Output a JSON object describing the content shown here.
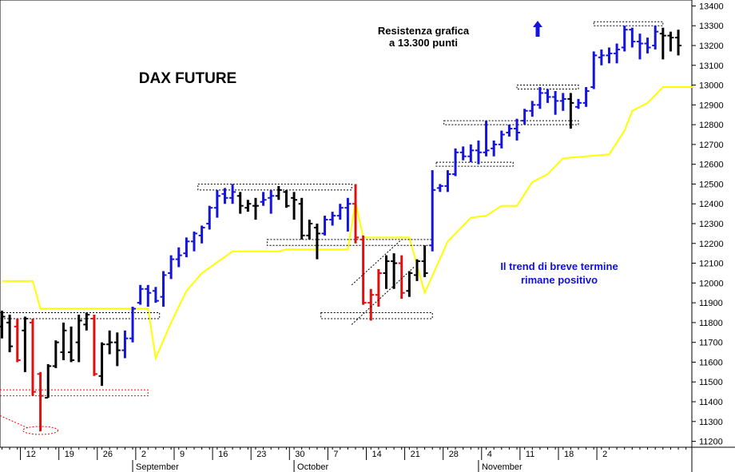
{
  "chart_data": {
    "type": "ohlc",
    "title": "DAX FUTURE",
    "ylim": [
      11170,
      13430
    ],
    "y_ticks": [
      11200,
      11300,
      11400,
      11500,
      11600,
      11700,
      11800,
      11900,
      12000,
      12100,
      12200,
      12300,
      12400,
      12500,
      12600,
      12700,
      12800,
      12900,
      13000,
      13100,
      13200,
      13300,
      13400
    ],
    "x_ticks": [
      {
        "label": "12",
        "index": 3
      },
      {
        "label": "19",
        "index": 8
      },
      {
        "label": "26",
        "index": 13
      },
      {
        "label": "2",
        "index": 18
      },
      {
        "label": "9",
        "index": 23
      },
      {
        "label": "16",
        "index": 28
      },
      {
        "label": "23",
        "index": 33
      },
      {
        "label": "30",
        "index": 38
      },
      {
        "label": "7",
        "index": 43
      },
      {
        "label": "14",
        "index": 48
      },
      {
        "label": "21",
        "index": 53
      },
      {
        "label": "28",
        "index": 58
      },
      {
        "label": "4",
        "index": 63
      },
      {
        "label": "11",
        "index": 68
      },
      {
        "label": "18",
        "index": 73
      },
      {
        "label": "2",
        "index": 78
      }
    ],
    "month_labels": [
      {
        "label": "September",
        "index": 17
      },
      {
        "label": "October",
        "index": 38
      },
      {
        "label": "November",
        "index": 62
      }
    ],
    "colors": {
      "up": "#1414dc",
      "down": "#e01010",
      "neutral": "#000000",
      "support_line": "#ffff00",
      "box_dark": "#000000",
      "box_red": "#e01010",
      "trend_text": "#1010e0"
    },
    "bars": [
      {
        "o": 11780,
        "h": 11860,
        "l": 11720,
        "c": 11830,
        "col": "neutral"
      },
      {
        "o": 11800,
        "h": 11840,
        "l": 11650,
        "c": 11680,
        "col": "neutral"
      },
      {
        "o": 11780,
        "h": 11820,
        "l": 11600,
        "c": 11610,
        "col": "down"
      },
      {
        "o": 11760,
        "h": 11830,
        "l": 11550,
        "c": 11820,
        "col": "neutral"
      },
      {
        "o": 11800,
        "h": 11820,
        "l": 11430,
        "c": 11450,
        "col": "down"
      },
      {
        "o": 11540,
        "h": 11550,
        "l": 11250,
        "c": 11430,
        "col": "down"
      },
      {
        "o": 11420,
        "h": 11590,
        "l": 11420,
        "c": 11580,
        "col": "neutral"
      },
      {
        "o": 11580,
        "h": 11710,
        "l": 11570,
        "c": 11700,
        "col": "neutral"
      },
      {
        "o": 11650,
        "h": 11800,
        "l": 11610,
        "c": 11760,
        "col": "neutral"
      },
      {
        "o": 11650,
        "h": 11780,
        "l": 11600,
        "c": 11610,
        "col": "neutral"
      },
      {
        "o": 11700,
        "h": 11840,
        "l": 11600,
        "c": 11810,
        "col": "neutral"
      },
      {
        "o": 11790,
        "h": 11850,
        "l": 11760,
        "c": 11840,
        "col": "neutral"
      },
      {
        "o": 11820,
        "h": 11840,
        "l": 11530,
        "c": 11540,
        "col": "down"
      },
      {
        "o": 11530,
        "h": 11700,
        "l": 11480,
        "c": 11690,
        "col": "neutral"
      },
      {
        "o": 11690,
        "h": 11760,
        "l": 11640,
        "c": 11700,
        "col": "neutral"
      },
      {
        "o": 11700,
        "h": 11750,
        "l": 11580,
        "c": 11660,
        "col": "neutral"
      },
      {
        "o": 11660,
        "h": 11760,
        "l": 11620,
        "c": 11720,
        "col": "up"
      },
      {
        "o": 11720,
        "h": 11880,
        "l": 11700,
        "c": 11870,
        "col": "up"
      },
      {
        "o": 11900,
        "h": 11990,
        "l": 11890,
        "c": 11970,
        "col": "up"
      },
      {
        "o": 11970,
        "h": 11990,
        "l": 11880,
        "c": 11950,
        "col": "up"
      },
      {
        "o": 11960,
        "h": 11980,
        "l": 11900,
        "c": 11910,
        "col": "up"
      },
      {
        "o": 11930,
        "h": 12060,
        "l": 11880,
        "c": 12040,
        "col": "up"
      },
      {
        "o": 12050,
        "h": 12140,
        "l": 12020,
        "c": 12120,
        "col": "up"
      },
      {
        "o": 12120,
        "h": 12180,
        "l": 12080,
        "c": 12140,
        "col": "up"
      },
      {
        "o": 12150,
        "h": 12230,
        "l": 12130,
        "c": 12210,
        "col": "up"
      },
      {
        "o": 12210,
        "h": 12260,
        "l": 12160,
        "c": 12250,
        "col": "up"
      },
      {
        "o": 12240,
        "h": 12290,
        "l": 12200,
        "c": 12280,
        "col": "up"
      },
      {
        "o": 12300,
        "h": 12390,
        "l": 12270,
        "c": 12380,
        "col": "up"
      },
      {
        "o": 12380,
        "h": 12470,
        "l": 12330,
        "c": 12440,
        "col": "up"
      },
      {
        "o": 12450,
        "h": 12480,
        "l": 12400,
        "c": 12430,
        "col": "up"
      },
      {
        "o": 12430,
        "h": 12500,
        "l": 12400,
        "c": 12460,
        "col": "up"
      },
      {
        "o": 12440,
        "h": 12460,
        "l": 12350,
        "c": 12390,
        "col": "neutral"
      },
      {
        "o": 12380,
        "h": 12420,
        "l": 12360,
        "c": 12400,
        "col": "neutral"
      },
      {
        "o": 12390,
        "h": 12430,
        "l": 12320,
        "c": 12390,
        "col": "neutral"
      },
      {
        "o": 12410,
        "h": 12460,
        "l": 12390,
        "c": 12420,
        "col": "up"
      },
      {
        "o": 12430,
        "h": 12470,
        "l": 12350,
        "c": 12440,
        "col": "up"
      },
      {
        "o": 12440,
        "h": 12490,
        "l": 12420,
        "c": 12470,
        "col": "neutral"
      },
      {
        "o": 12460,
        "h": 12470,
        "l": 12380,
        "c": 12390,
        "col": "neutral"
      },
      {
        "o": 12430,
        "h": 12460,
        "l": 12320,
        "c": 12420,
        "col": "neutral"
      },
      {
        "o": 12400,
        "h": 12430,
        "l": 12220,
        "c": 12240,
        "col": "neutral"
      },
      {
        "o": 12240,
        "h": 12320,
        "l": 12220,
        "c": 12300,
        "col": "neutral"
      },
      {
        "o": 12280,
        "h": 12300,
        "l": 12120,
        "c": 12250,
        "col": "neutral"
      },
      {
        "o": 12250,
        "h": 12340,
        "l": 12240,
        "c": 12320,
        "col": "up"
      },
      {
        "o": 12320,
        "h": 12360,
        "l": 12290,
        "c": 12340,
        "col": "up"
      },
      {
        "o": 12340,
        "h": 12400,
        "l": 12320,
        "c": 12380,
        "col": "up"
      },
      {
        "o": 12380,
        "h": 12430,
        "l": 12260,
        "c": 12400,
        "col": "up"
      },
      {
        "o": 12400,
        "h": 12500,
        "l": 12200,
        "c": 12230,
        "col": "down"
      },
      {
        "o": 12220,
        "h": 12240,
        "l": 11890,
        "c": 11900,
        "col": "down"
      },
      {
        "o": 11900,
        "h": 11970,
        "l": 11810,
        "c": 11940,
        "col": "down"
      },
      {
        "o": 11940,
        "h": 12070,
        "l": 11880,
        "c": 12050,
        "col": "down"
      },
      {
        "o": 12050,
        "h": 12140,
        "l": 11970,
        "c": 12110,
        "col": "neutral"
      },
      {
        "o": 12110,
        "h": 12150,
        "l": 11970,
        "c": 12100,
        "col": "neutral"
      },
      {
        "o": 12100,
        "h": 12140,
        "l": 11920,
        "c": 11950,
        "col": "down"
      },
      {
        "o": 11960,
        "h": 12060,
        "l": 11930,
        "c": 12050,
        "col": "neutral"
      },
      {
        "o": 12040,
        "h": 12120,
        "l": 12010,
        "c": 12110,
        "col": "neutral"
      },
      {
        "o": 12110,
        "h": 12190,
        "l": 12030,
        "c": 12050,
        "col": "neutral"
      },
      {
        "o": 12190,
        "h": 12570,
        "l": 12160,
        "c": 12470,
        "col": "up"
      },
      {
        "o": 12480,
        "h": 12500,
        "l": 12460,
        "c": 12490,
        "col": "up"
      },
      {
        "o": 12490,
        "h": 12570,
        "l": 12460,
        "c": 12550,
        "col": "up"
      },
      {
        "o": 12550,
        "h": 12680,
        "l": 12540,
        "c": 12660,
        "col": "up"
      },
      {
        "o": 12660,
        "h": 12690,
        "l": 12620,
        "c": 12640,
        "col": "up"
      },
      {
        "o": 12640,
        "h": 12700,
        "l": 12610,
        "c": 12670,
        "col": "up"
      },
      {
        "o": 12670,
        "h": 12720,
        "l": 12600,
        "c": 12660,
        "col": "up"
      },
      {
        "o": 12660,
        "h": 12820,
        "l": 12640,
        "c": 12670,
        "col": "up"
      },
      {
        "o": 12680,
        "h": 12720,
        "l": 12640,
        "c": 12700,
        "col": "up"
      },
      {
        "o": 12700,
        "h": 12770,
        "l": 12680,
        "c": 12750,
        "col": "up"
      },
      {
        "o": 12760,
        "h": 12800,
        "l": 12740,
        "c": 12780,
        "col": "up"
      },
      {
        "o": 12780,
        "h": 12830,
        "l": 12720,
        "c": 12760,
        "col": "up"
      }
    ],
    "bars2": [
      {
        "o": 12820,
        "h": 12880,
        "l": 12800,
        "c": 12870,
        "col": "up"
      },
      {
        "o": 12870,
        "h": 12920,
        "l": 12840,
        "c": 12900,
        "col": "up"
      },
      {
        "o": 12900,
        "h": 12990,
        "l": 12880,
        "c": 12960,
        "col": "up"
      },
      {
        "o": 12960,
        "h": 12980,
        "l": 12910,
        "c": 12940,
        "col": "up"
      },
      {
        "o": 12940,
        "h": 12970,
        "l": 12850,
        "c": 12920,
        "col": "up"
      },
      {
        "o": 12920,
        "h": 12960,
        "l": 12870,
        "c": 12930,
        "col": "up"
      },
      {
        "o": 12930,
        "h": 12960,
        "l": 12780,
        "c": 12910,
        "col": "neutral"
      },
      {
        "o": 12890,
        "h": 12930,
        "l": 12880,
        "c": 12910,
        "col": "up"
      },
      {
        "o": 12910,
        "h": 12990,
        "l": 12890,
        "c": 12970,
        "col": "up"
      },
      {
        "o": 12990,
        "h": 13170,
        "l": 12980,
        "c": 13150,
        "col": "up"
      },
      {
        "o": 13140,
        "h": 13180,
        "l": 13100,
        "c": 13150,
        "col": "up"
      },
      {
        "o": 13150,
        "h": 13190,
        "l": 13110,
        "c": 13160,
        "col": "up"
      },
      {
        "o": 13160,
        "h": 13210,
        "l": 13110,
        "c": 13180,
        "col": "up"
      },
      {
        "o": 13190,
        "h": 13300,
        "l": 13170,
        "c": 13280,
        "col": "up"
      },
      {
        "o": 13280,
        "h": 13290,
        "l": 13190,
        "c": 13220,
        "col": "up"
      },
      {
        "o": 13220,
        "h": 13260,
        "l": 13130,
        "c": 13210,
        "col": "up"
      },
      {
        "o": 13210,
        "h": 13240,
        "l": 13160,
        "c": 13190,
        "col": "up"
      },
      {
        "o": 13200,
        "h": 13300,
        "l": 13180,
        "c": 13270,
        "col": "up"
      },
      {
        "o": 13260,
        "h": 13290,
        "l": 13130,
        "c": 13250,
        "col": "neutral"
      },
      {
        "o": 13250,
        "h": 13270,
        "l": 13170,
        "c": 13240,
        "col": "neutral"
      },
      {
        "o": 13240,
        "h": 13280,
        "l": 13150,
        "c": 13200,
        "col": "neutral"
      }
    ],
    "support_line": [
      {
        "i": 0,
        "y": 12010
      },
      {
        "i": 4,
        "y": 12010
      },
      {
        "i": 5,
        "y": 11870
      },
      {
        "i": 19,
        "y": 11870
      },
      {
        "i": 20,
        "y": 11620
      },
      {
        "i": 22,
        "y": 11800
      },
      {
        "i": 24,
        "y": 11960
      },
      {
        "i": 26,
        "y": 12050
      },
      {
        "i": 30,
        "y": 12160
      },
      {
        "i": 36,
        "y": 12160
      },
      {
        "i": 37,
        "y": 12170
      },
      {
        "i": 45,
        "y": 12170
      },
      {
        "i": 46,
        "y": 12410
      },
      {
        "i": 47,
        "y": 12230
      },
      {
        "i": 53,
        "y": 12230
      },
      {
        "i": 55,
        "y": 11950
      },
      {
        "i": 58,
        "y": 12210
      },
      {
        "i": 61,
        "y": 12330
      },
      {
        "i": 63,
        "y": 12340
      },
      {
        "i": 65,
        "y": 12390
      },
      {
        "i": 67,
        "y": 12390
      },
      {
        "i": 69,
        "y": 12510
      },
      {
        "i": 71,
        "y": 12550
      },
      {
        "i": 73,
        "y": 12630
      },
      {
        "i": 76,
        "y": 12640
      },
      {
        "i": 79,
        "y": 12650
      },
      {
        "i": 81,
        "y": 12770
      },
      {
        "i": 82,
        "y": 12870
      },
      {
        "i": 84,
        "y": 12910
      },
      {
        "i": 86,
        "y": 12990
      },
      {
        "i": 90,
        "y": 12990
      }
    ],
    "boxes": [
      {
        "x0": -1,
        "x1": 20.5,
        "y0": 11820,
        "y1": 11850,
        "col": "box_dark"
      },
      {
        "x0": 25.5,
        "x1": 45.5,
        "y0": 12470,
        "y1": 12500,
        "col": "box_dark"
      },
      {
        "x0": 34.5,
        "x1": 56,
        "y0": 12190,
        "y1": 12220,
        "col": "box_dark"
      },
      {
        "x0": 41.5,
        "x1": 56,
        "y0": 11820,
        "y1": 11850,
        "col": "box_dark"
      },
      {
        "x0": 56.5,
        "x1": 66.5,
        "y0": 12590,
        "y1": 12610,
        "col": "box_dark"
      },
      {
        "x0": 57.5,
        "x1": 67,
        "y0": 12800,
        "y1": 12820,
        "col": "box_dark"
      },
      {
        "x0": 67,
        "x1": 75,
        "y0": 12800,
        "y1": 12820,
        "col": "box_dark"
      },
      {
        "x0": 67,
        "x1": 75,
        "y0": 12980,
        "y1": 13000,
        "col": "box_dark"
      },
      {
        "x0": 77,
        "x1": 86,
        "y0": 13300,
        "y1": 13320,
        "col": "box_dark"
      },
      {
        "x0": -1,
        "x1": 19,
        "y0": 11430,
        "y1": 11460,
        "col": "box_red"
      }
    ],
    "x_axis_ticks_count": 90
  },
  "annotations": {
    "title": "DAX FUTURE",
    "resistance_line1": "Resistenza grafica",
    "resistance_line2": "a 13.300 punti",
    "trend_line1": "Il trend di breve termine",
    "trend_line2": "rimane positivo"
  }
}
